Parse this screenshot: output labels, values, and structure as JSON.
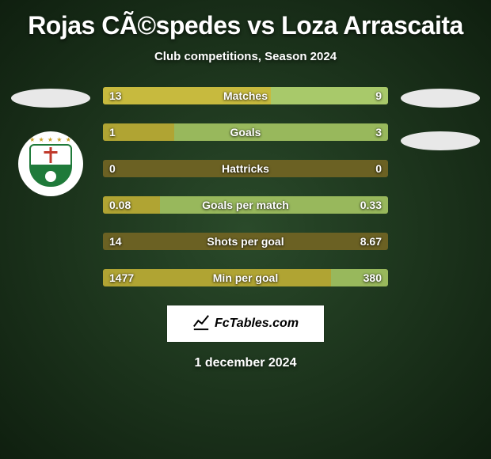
{
  "title": "Rojas CÃ©spedes vs Loza Arrascaita",
  "subtitle": "Club competitions, Season 2024",
  "date": "1 december 2024",
  "footer_brand": "FcTables.com",
  "colors": {
    "bg_gradient_inner": "#2a4a2a",
    "bg_gradient_outer": "#0f1f0f",
    "bar_base": "#6b6123",
    "bar_base_first": "#847627",
    "bar_left": "#b0a433",
    "bar_left_first": "#c7ba3e",
    "bar_right": "#98b85c",
    "bar_right_first": "#a8c96a",
    "ellipse": "#e8e8e8",
    "text": "#ffffff"
  },
  "left_player": {
    "has_ellipse": true,
    "has_club_badge": true
  },
  "right_player": {
    "has_ellipse_top": true,
    "has_ellipse_bottom": true
  },
  "stats": [
    {
      "label": "Matches",
      "left_val": "13",
      "right_val": "9",
      "left_pct": 59,
      "right_pct": 41,
      "first": true
    },
    {
      "label": "Goals",
      "left_val": "1",
      "right_val": "3",
      "left_pct": 25,
      "right_pct": 75
    },
    {
      "label": "Hattricks",
      "left_val": "0",
      "right_val": "0",
      "left_pct": 0,
      "right_pct": 0
    },
    {
      "label": "Goals per match",
      "left_val": "0.08",
      "right_val": "0.33",
      "left_pct": 20,
      "right_pct": 80
    },
    {
      "label": "Shots per goal",
      "left_val": "14",
      "right_val": "8.67",
      "left_pct": 0,
      "right_pct": 0
    },
    {
      "label": "Min per goal",
      "left_val": "1477",
      "right_val": "380",
      "left_pct": 80,
      "right_pct": 20
    }
  ]
}
